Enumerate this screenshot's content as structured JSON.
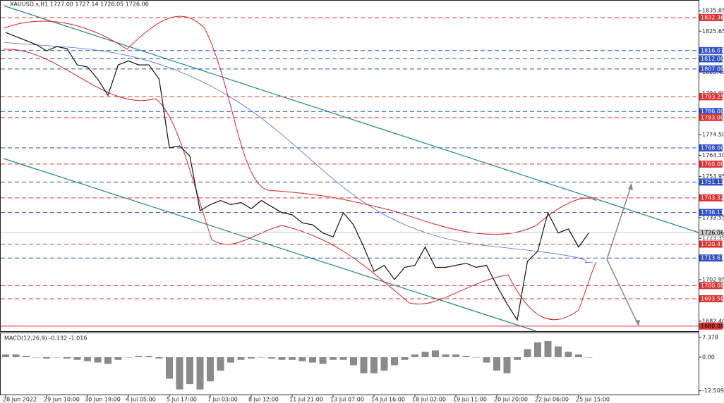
{
  "chart_data": [
    {
      "type": "line",
      "title": "XAUUSD.s,H1  1727.00 1727.14 1726.05 1726.06",
      "categories": [
        "28 Jun 2022",
        null,
        null,
        null,
        "29 Jun 10:00",
        null,
        null,
        null,
        "30 Jun 19:00",
        null,
        null,
        null,
        "4 Jul 05:00",
        null,
        null,
        null,
        "5 Jul 17:00",
        null,
        null,
        null,
        "7 Jul 03:00",
        null,
        null,
        null,
        "8 Jul 12:00",
        null,
        null,
        null,
        "11 Jul 21:00",
        null,
        null,
        null,
        "13 Jul 07:00",
        null,
        null,
        null,
        "14 Jul 16:00",
        null,
        null,
        null,
        "18 Jul 02:00",
        null,
        null,
        null,
        "19 Jul 11:00",
        null,
        null,
        null,
        "20 Jul 20:00",
        null,
        null,
        null,
        "22 Jul 06:00",
        null,
        null,
        null,
        "25 Jul 15:00",
        null
      ],
      "values": [
        1825,
        1823,
        1821,
        1819,
        1816,
        1818,
        1817,
        1809,
        1808,
        1802,
        1794,
        1809,
        1811,
        1809,
        1809,
        1802,
        1768,
        1769,
        1764,
        1737,
        1740,
        1742,
        1740,
        1741,
        1738,
        1742,
        1739,
        1736,
        1735,
        1731,
        1730,
        1726,
        1724,
        1736,
        1730,
        1719,
        1707,
        1710,
        1703,
        1709,
        1710,
        1719,
        1709,
        1709,
        1710,
        1711,
        1709,
        1710,
        1700,
        1691,
        1683,
        1712,
        1717,
        1736,
        1726,
        1728,
        1719,
        1726.06
      ],
      "color": "#111111",
      "ylim": [
        1677.5,
        1840.7
      ],
      "yticks": [
        1835.85,
        1825.65,
        {
          "value": 1805.4,
          "label": "1805.40"
        },
        {
          "value": 1794.9,
          "label": "1794.90"
        },
        {
          "value": 1774.5,
          "label": "1774.50"
        },
        {
          "value": 1764.3,
          "label": "1764.30"
        },
        1753.95,
        1733.55,
        1723.35,
        1702.95,
        {
          "value": 1682.4,
          "label": "1682.40"
        }
      ],
      "levels": [
        {
          "value": 1832.36,
          "color": "#e03131",
          "dash": true
        },
        {
          "value": 1816.07,
          "color": "#2f4fc9",
          "dash": true
        },
        {
          "value": 1812,
          "label": "1812.00",
          "color": "#2f4fc9",
          "dash": true
        },
        {
          "value": 1807,
          "label": "1807.00",
          "color": "#2f4fc9",
          "dash": true
        },
        {
          "value": 1793.25,
          "color": "#e03131",
          "dash": true
        },
        {
          "value": 1786,
          "label": "1786.00",
          "color": "#2f4fc9",
          "dash": true
        },
        {
          "value": 1783,
          "label": "1783.00",
          "color": "#e03131",
          "dash": true
        },
        {
          "value": 1768,
          "label": "1768.00",
          "color": "#2f4fc9",
          "dash": true
        },
        {
          "value": 1760,
          "label": "1760.00",
          "color": "#e03131",
          "dash": true
        },
        {
          "value": 1751.13,
          "color": "#2f4fc9",
          "dash": true
        },
        {
          "value": 1743.32,
          "color": "#e03131",
          "dash": true
        },
        {
          "value": 1736.11,
          "color": "#2f4fc9",
          "dash": true
        },
        {
          "value": 1726.06,
          "color": "#c8c8c8",
          "dash": false
        },
        {
          "value": 1720.47,
          "color": "#e03131",
          "dash": true
        },
        {
          "value": 1713.61,
          "color": "#2f4fc9",
          "dash": true
        },
        {
          "value": 1700,
          "label": "1700.00",
          "color": "#e03131",
          "dash": true
        },
        {
          "value": 1693.5,
          "label": "1693.50",
          "color": "#e03131",
          "dash": true
        },
        {
          "value": 1680,
          "label": "1680.00",
          "color": "#e03131",
          "dash": false
        }
      ]
    },
    {
      "type": "bar",
      "title": "MACD(12,26,9) -0.132 -1.016",
      "values": [
        1,
        1,
        0.5,
        0,
        -0.5,
        0,
        -0.5,
        -1,
        -1.5,
        -2,
        -2.5,
        -1,
        0,
        0.5,
        0.5,
        -0.5,
        -8,
        -12,
        -10,
        -12,
        -9,
        -5,
        -2,
        -1,
        -0.5,
        0,
        -0.5,
        -1,
        -1,
        -1.5,
        -2,
        -2.5,
        -1,
        -1,
        -3,
        -6,
        -6,
        -5,
        -3,
        -1,
        1,
        2,
        2.5,
        1,
        1,
        0.5,
        0,
        -2,
        -5,
        -6,
        -1,
        3,
        5.5,
        6,
        4,
        2,
        1,
        -0.132
      ],
      "color": "#8a8a8a",
      "ylim": [
        -13.9,
        8.9
      ],
      "yticks": [
        7.378,
        {
          "value": 0,
          "label": "0.00"
        },
        -12.509
      ]
    }
  ]
}
